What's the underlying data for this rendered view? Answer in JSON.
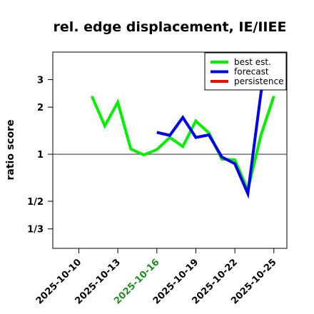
{
  "chart_data": {
    "type": "line",
    "title": "rel. edge displacement, IE/IIEE",
    "xlabel": "",
    "ylabel": "ratio score",
    "y_scale": "log",
    "ylim": [
      0.25,
      4.5
    ],
    "x_start": "2025-10-08",
    "x_end": "2025-10-26",
    "x_ticks": [
      "2025-10-10",
      "2025-10-13",
      "2025-10-16",
      "2025-10-19",
      "2025-10-22",
      "2025-10-25"
    ],
    "x_tick_colors": [
      "#000000",
      "#000000",
      "#228B22",
      "#000000",
      "#000000",
      "#000000"
    ],
    "y_ticks": [
      {
        "value": 0.333,
        "label": "1/3"
      },
      {
        "value": 0.5,
        "label": "1/2"
      },
      {
        "value": 1,
        "label": "1"
      },
      {
        "value": 2,
        "label": "2"
      },
      {
        "value": 3,
        "label": "3"
      }
    ],
    "reference_line": 1,
    "legend_position": "top-right",
    "series": [
      {
        "name": "best est.",
        "color": "#00ee00",
        "points": [
          [
            "2025-10-11",
            2.35
          ],
          [
            "2025-10-12",
            1.52
          ],
          [
            "2025-10-13",
            2.15
          ],
          [
            "2025-10-14",
            1.08
          ],
          [
            "2025-10-15",
            0.99
          ],
          [
            "2025-10-16",
            1.07
          ],
          [
            "2025-10-17",
            1.28
          ],
          [
            "2025-10-18",
            1.12
          ],
          [
            "2025-10-19",
            1.63
          ],
          [
            "2025-10-20",
            1.37
          ],
          [
            "2025-10-21",
            0.93
          ],
          [
            "2025-10-22",
            0.92
          ],
          [
            "2025-10-23",
            0.59
          ],
          [
            "2025-10-24",
            1.32
          ],
          [
            "2025-10-25",
            2.35
          ]
        ]
      },
      {
        "name": "forecast",
        "color": "#0000ee",
        "points": [
          [
            "2025-10-16",
            1.38
          ],
          [
            "2025-10-17",
            1.32
          ],
          [
            "2025-10-18",
            1.72
          ],
          [
            "2025-10-19",
            1.28
          ],
          [
            "2025-10-20",
            1.33
          ],
          [
            "2025-10-21",
            0.96
          ],
          [
            "2025-10-22",
            0.87
          ],
          [
            "2025-10-23",
            0.56
          ],
          [
            "2025-10-24",
            2.45
          ],
          [
            "2025-10-24.6",
            4.5
          ]
        ]
      },
      {
        "name": "persistence",
        "color": "#ff0000",
        "points": []
      }
    ]
  }
}
